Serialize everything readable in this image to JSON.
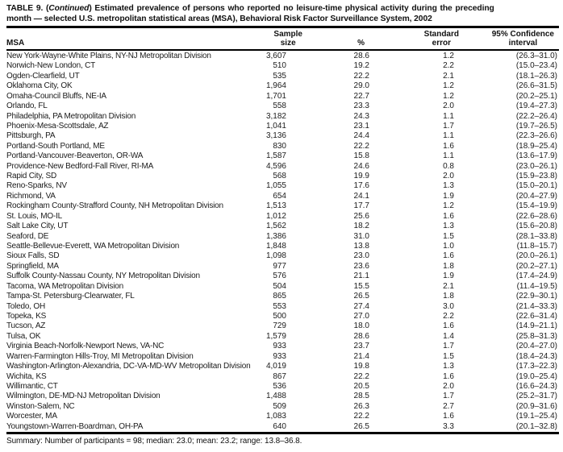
{
  "title": {
    "prefix": "TABLE 9. (",
    "continued": "Continued",
    "line1_rest": ") Estimated prevalence of persons who reported no leisure-time physical activity during the preceding",
    "line2": "month — selected U.S. metropolitan statistical areas (MSA), Behavioral Risk Factor Surveillance System, 2002"
  },
  "table": {
    "columns": [
      {
        "key": "msa",
        "label": "MSA"
      },
      {
        "key": "sample",
        "label_line1": "Sample",
        "label_line2": "size"
      },
      {
        "key": "pct",
        "label": "%"
      },
      {
        "key": "se",
        "label_line1": "Standard",
        "label_line2": "error"
      },
      {
        "key": "ci",
        "label_line1": "95% Confidence",
        "label_line2": "interval"
      }
    ],
    "rows": [
      {
        "msa": "New York-Wayne-White Plains, NY-NJ Metropolitan Division",
        "sample": "3,607",
        "pct": "28.6",
        "se": "1.2",
        "ci": "(26.3–31.0)"
      },
      {
        "msa": "Norwich-New London, CT",
        "sample": "510",
        "pct": "19.2",
        "se": "2.2",
        "ci": "(15.0–23.4)"
      },
      {
        "msa": "Ogden-Clearfield, UT",
        "sample": "535",
        "pct": "22.2",
        "se": "2.1",
        "ci": "(18.1–26.3)"
      },
      {
        "msa": "Oklahoma City, OK",
        "sample": "1,964",
        "pct": "29.0",
        "se": "1.2",
        "ci": "(26.6–31.5)"
      },
      {
        "msa": "Omaha-Council Bluffs, NE-IA",
        "sample": "1,701",
        "pct": "22.7",
        "se": "1.2",
        "ci": "(20.2–25.1)"
      },
      {
        "msa": "Orlando, FL",
        "sample": "558",
        "pct": "23.3",
        "se": "2.0",
        "ci": "(19.4–27.3)"
      },
      {
        "msa": "Philadelphia, PA Metropolitan Division",
        "sample": "3,182",
        "pct": "24.3",
        "se": "1.1",
        "ci": "(22.2–26.4)"
      },
      {
        "msa": "Phoenix-Mesa-Scottsdale, AZ",
        "sample": "1,041",
        "pct": "23.1",
        "se": "1.7",
        "ci": "(19.7–26.5)"
      },
      {
        "msa": "Pittsburgh, PA",
        "sample": "3,136",
        "pct": "24.4",
        "se": "1.1",
        "ci": "(22.3–26.6)"
      },
      {
        "msa": "Portland-South Portland, ME",
        "sample": "830",
        "pct": "22.2",
        "se": "1.6",
        "ci": "(18.9–25.4)"
      },
      {
        "msa": "Portland-Vancouver-Beaverton, OR-WA",
        "sample": "1,587",
        "pct": "15.8",
        "se": "1.1",
        "ci": "(13.6–17.9)"
      },
      {
        "msa": "Providence-New Bedford-Fall River, RI-MA",
        "sample": "4,596",
        "pct": "24.6",
        "se": "0.8",
        "ci": "(23.0–26.1)"
      },
      {
        "msa": "Rapid City, SD",
        "sample": "568",
        "pct": "19.9",
        "se": "2.0",
        "ci": "(15.9–23.8)"
      },
      {
        "msa": "Reno-Sparks, NV",
        "sample": "1,055",
        "pct": "17.6",
        "se": "1.3",
        "ci": "(15.0–20.1)"
      },
      {
        "msa": "Richmond, VA",
        "sample": "654",
        "pct": "24.1",
        "se": "1.9",
        "ci": "(20.4–27.9)"
      },
      {
        "msa": "Rockingham County-Strafford County, NH Metropolitan Division",
        "sample": "1,513",
        "pct": "17.7",
        "se": "1.2",
        "ci": "(15.4–19.9)"
      },
      {
        "msa": "St. Louis, MO-IL",
        "sample": "1,012",
        "pct": "25.6",
        "se": "1.6",
        "ci": "(22.6–28.6)"
      },
      {
        "msa": "Salt Lake City, UT",
        "sample": "1,562",
        "pct": "18.2",
        "se": "1.3",
        "ci": "(15.6–20.8)"
      },
      {
        "msa": "Seaford, DE",
        "sample": "1,386",
        "pct": "31.0",
        "se": "1.5",
        "ci": "(28.1–33.8)"
      },
      {
        "msa": "Seattle-Bellevue-Everett, WA Metropolitan Division",
        "sample": "1,848",
        "pct": "13.8",
        "se": "1.0",
        "ci": "(11.8–15.7)"
      },
      {
        "msa": "Sioux Falls, SD",
        "sample": "1,098",
        "pct": "23.0",
        "se": "1.6",
        "ci": "(20.0–26.1)"
      },
      {
        "msa": "Springfield, MA",
        "sample": "977",
        "pct": "23.6",
        "se": "1.8",
        "ci": "(20.2–27.1)"
      },
      {
        "msa": "Suffolk County-Nassau County, NY Metropolitan Division",
        "sample": "576",
        "pct": "21.1",
        "se": "1.9",
        "ci": "(17.4–24.9)"
      },
      {
        "msa": "Tacoma, WA Metropolitan Division",
        "sample": "504",
        "pct": "15.5",
        "se": "2.1",
        "ci": "(11.4–19.5)"
      },
      {
        "msa": "Tampa-St. Petersburg-Clearwater, FL",
        "sample": "865",
        "pct": "26.5",
        "se": "1.8",
        "ci": "(22.9–30.1)"
      },
      {
        "msa": "Toledo, OH",
        "sample": "553",
        "pct": "27.4",
        "se": "3.0",
        "ci": "(21.4–33.3)"
      },
      {
        "msa": "Topeka, KS",
        "sample": "500",
        "pct": "27.0",
        "se": "2.2",
        "ci": "(22.6–31.4)"
      },
      {
        "msa": "Tucson, AZ",
        "sample": "729",
        "pct": "18.0",
        "se": "1.6",
        "ci": "(14.9–21.1)"
      },
      {
        "msa": "Tulsa, OK",
        "sample": "1,579",
        "pct": "28.6",
        "se": "1.4",
        "ci": "(25.8–31.3)"
      },
      {
        "msa": "Virginia Beach-Norfolk-Newport News, VA-NC",
        "sample": "933",
        "pct": "23.7",
        "se": "1.7",
        "ci": "(20.4–27.0)"
      },
      {
        "msa": "Warren-Farmington Hills-Troy, MI Metropolitan Division",
        "sample": "933",
        "pct": "21.4",
        "se": "1.5",
        "ci": "(18.4–24.3)"
      },
      {
        "msa": "Washington-Arlington-Alexandria, DC-VA-MD-WV Metropolitan Division",
        "sample": "4,019",
        "pct": "19.8",
        "se": "1.3",
        "ci": "(17.3–22.3)"
      },
      {
        "msa": "Wichita, KS",
        "sample": "867",
        "pct": "22.2",
        "se": "1.6",
        "ci": "(19.0–25.4)"
      },
      {
        "msa": "Willimantic, CT",
        "sample": "536",
        "pct": "20.5",
        "se": "2.0",
        "ci": "(16.6–24.3)"
      },
      {
        "msa": "Wilmington, DE-MD-NJ Metropolitan Division",
        "sample": "1,488",
        "pct": "28.5",
        "se": "1.7",
        "ci": "(25.2–31.7)"
      },
      {
        "msa": "Winston-Salem, NC",
        "sample": "509",
        "pct": "26.3",
        "se": "2.7",
        "ci": "(20.9–31.6)"
      },
      {
        "msa": "Worcester, MA",
        "sample": "1,083",
        "pct": "22.2",
        "se": "1.6",
        "ci": "(19.1–25.4)"
      },
      {
        "msa": "Youngstown-Warren-Boardman, OH-PA",
        "sample": "640",
        "pct": "26.5",
        "se": "3.3",
        "ci": "(20.1–32.8)"
      }
    ]
  },
  "summary": "Summary: Number of participants = 98; median: 23.0; mean: 23.2; range: 13.8–36.8."
}
